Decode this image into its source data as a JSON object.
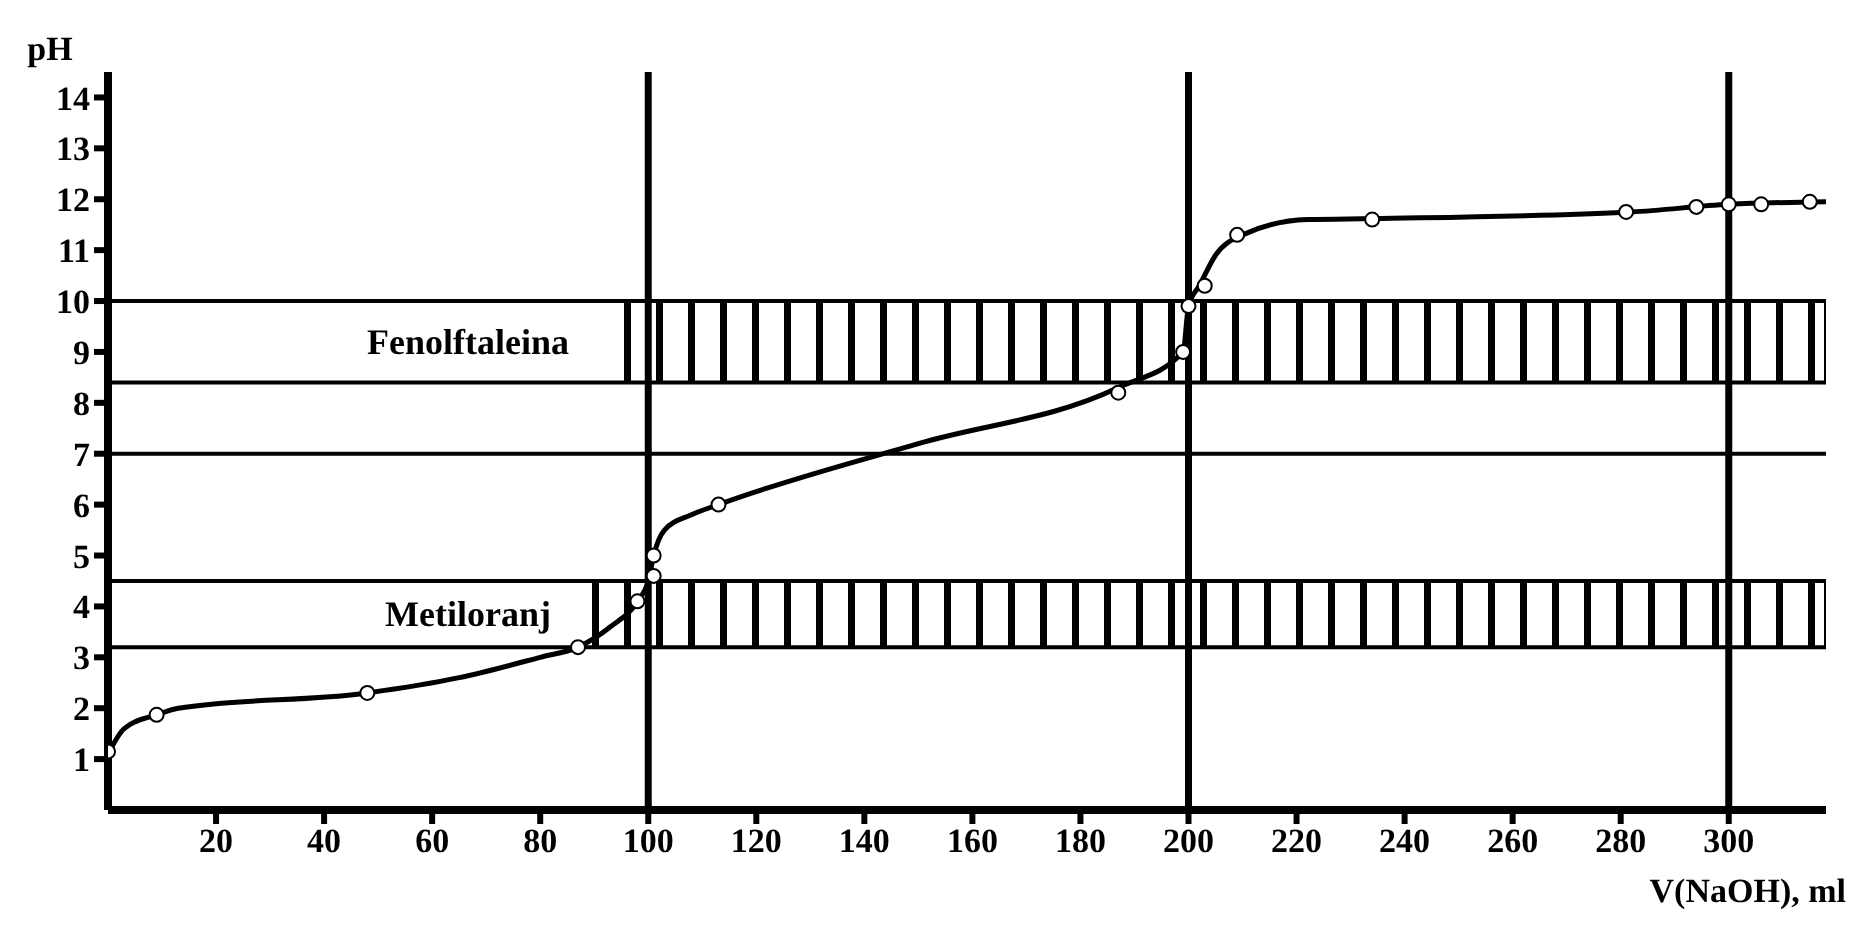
{
  "chart_data": {
    "type": "line",
    "xlabel": "V(NaOH), ml",
    "ylabel": "pH",
    "xlim": [
      0,
      318
    ],
    "ylim": [
      0,
      14.5
    ],
    "xticks": [
      20,
      40,
      60,
      80,
      100,
      120,
      140,
      160,
      180,
      200,
      220,
      240,
      260,
      280,
      300
    ],
    "yticks": [
      1,
      2,
      3,
      4,
      5,
      6,
      7,
      8,
      9,
      10,
      11,
      12,
      13,
      14
    ],
    "series": [
      {
        "color": "#000000",
        "marker": "none",
        "x": [
          0,
          3,
          9,
          13,
          48,
          65,
          80,
          87,
          93,
          98,
          100,
          101,
          103,
          108,
          113,
          150,
          187,
          199,
          200,
          202,
          205,
          210,
          222,
          234,
          282,
          300,
          318
        ],
        "values": [
          1.1,
          1.6,
          1.87,
          2.0,
          2.3,
          2.6,
          3.0,
          3.2,
          3.6,
          4.1,
          4.5,
          5.0,
          5.5,
          5.8,
          6.0,
          7.2,
          8.3,
          9.0,
          9.9,
          10.3,
          10.9,
          11.3,
          11.6,
          11.62,
          11.75,
          11.9,
          11.95
        ]
      },
      {
        "type": "scatter",
        "color": "#000000",
        "marker": "circle",
        "x": [
          0,
          9,
          48,
          87,
          98,
          101,
          101,
          113,
          187,
          199,
          200,
          203,
          209,
          234,
          281,
          294,
          300,
          306,
          315
        ],
        "values": [
          1.15,
          1.87,
          2.3,
          3.2,
          4.1,
          4.6,
          5.0,
          6.0,
          8.2,
          9.0,
          9.9,
          10.3,
          11.3,
          11.6,
          11.75,
          11.85,
          11.9,
          11.9,
          11.95
        ]
      }
    ],
    "ref_lines": [
      {
        "axis": "x",
        "value": 100
      },
      {
        "axis": "x",
        "value": 200
      },
      {
        "axis": "x",
        "value": 300
      },
      {
        "axis": "y",
        "value": 7
      }
    ],
    "bands": [
      {
        "axis": "y",
        "from": 8.4,
        "to": 10,
        "label": "Fenolftaleina"
      },
      {
        "axis": "y",
        "from": 3.2,
        "to": 4.5,
        "label": "Metiloranj"
      }
    ]
  }
}
